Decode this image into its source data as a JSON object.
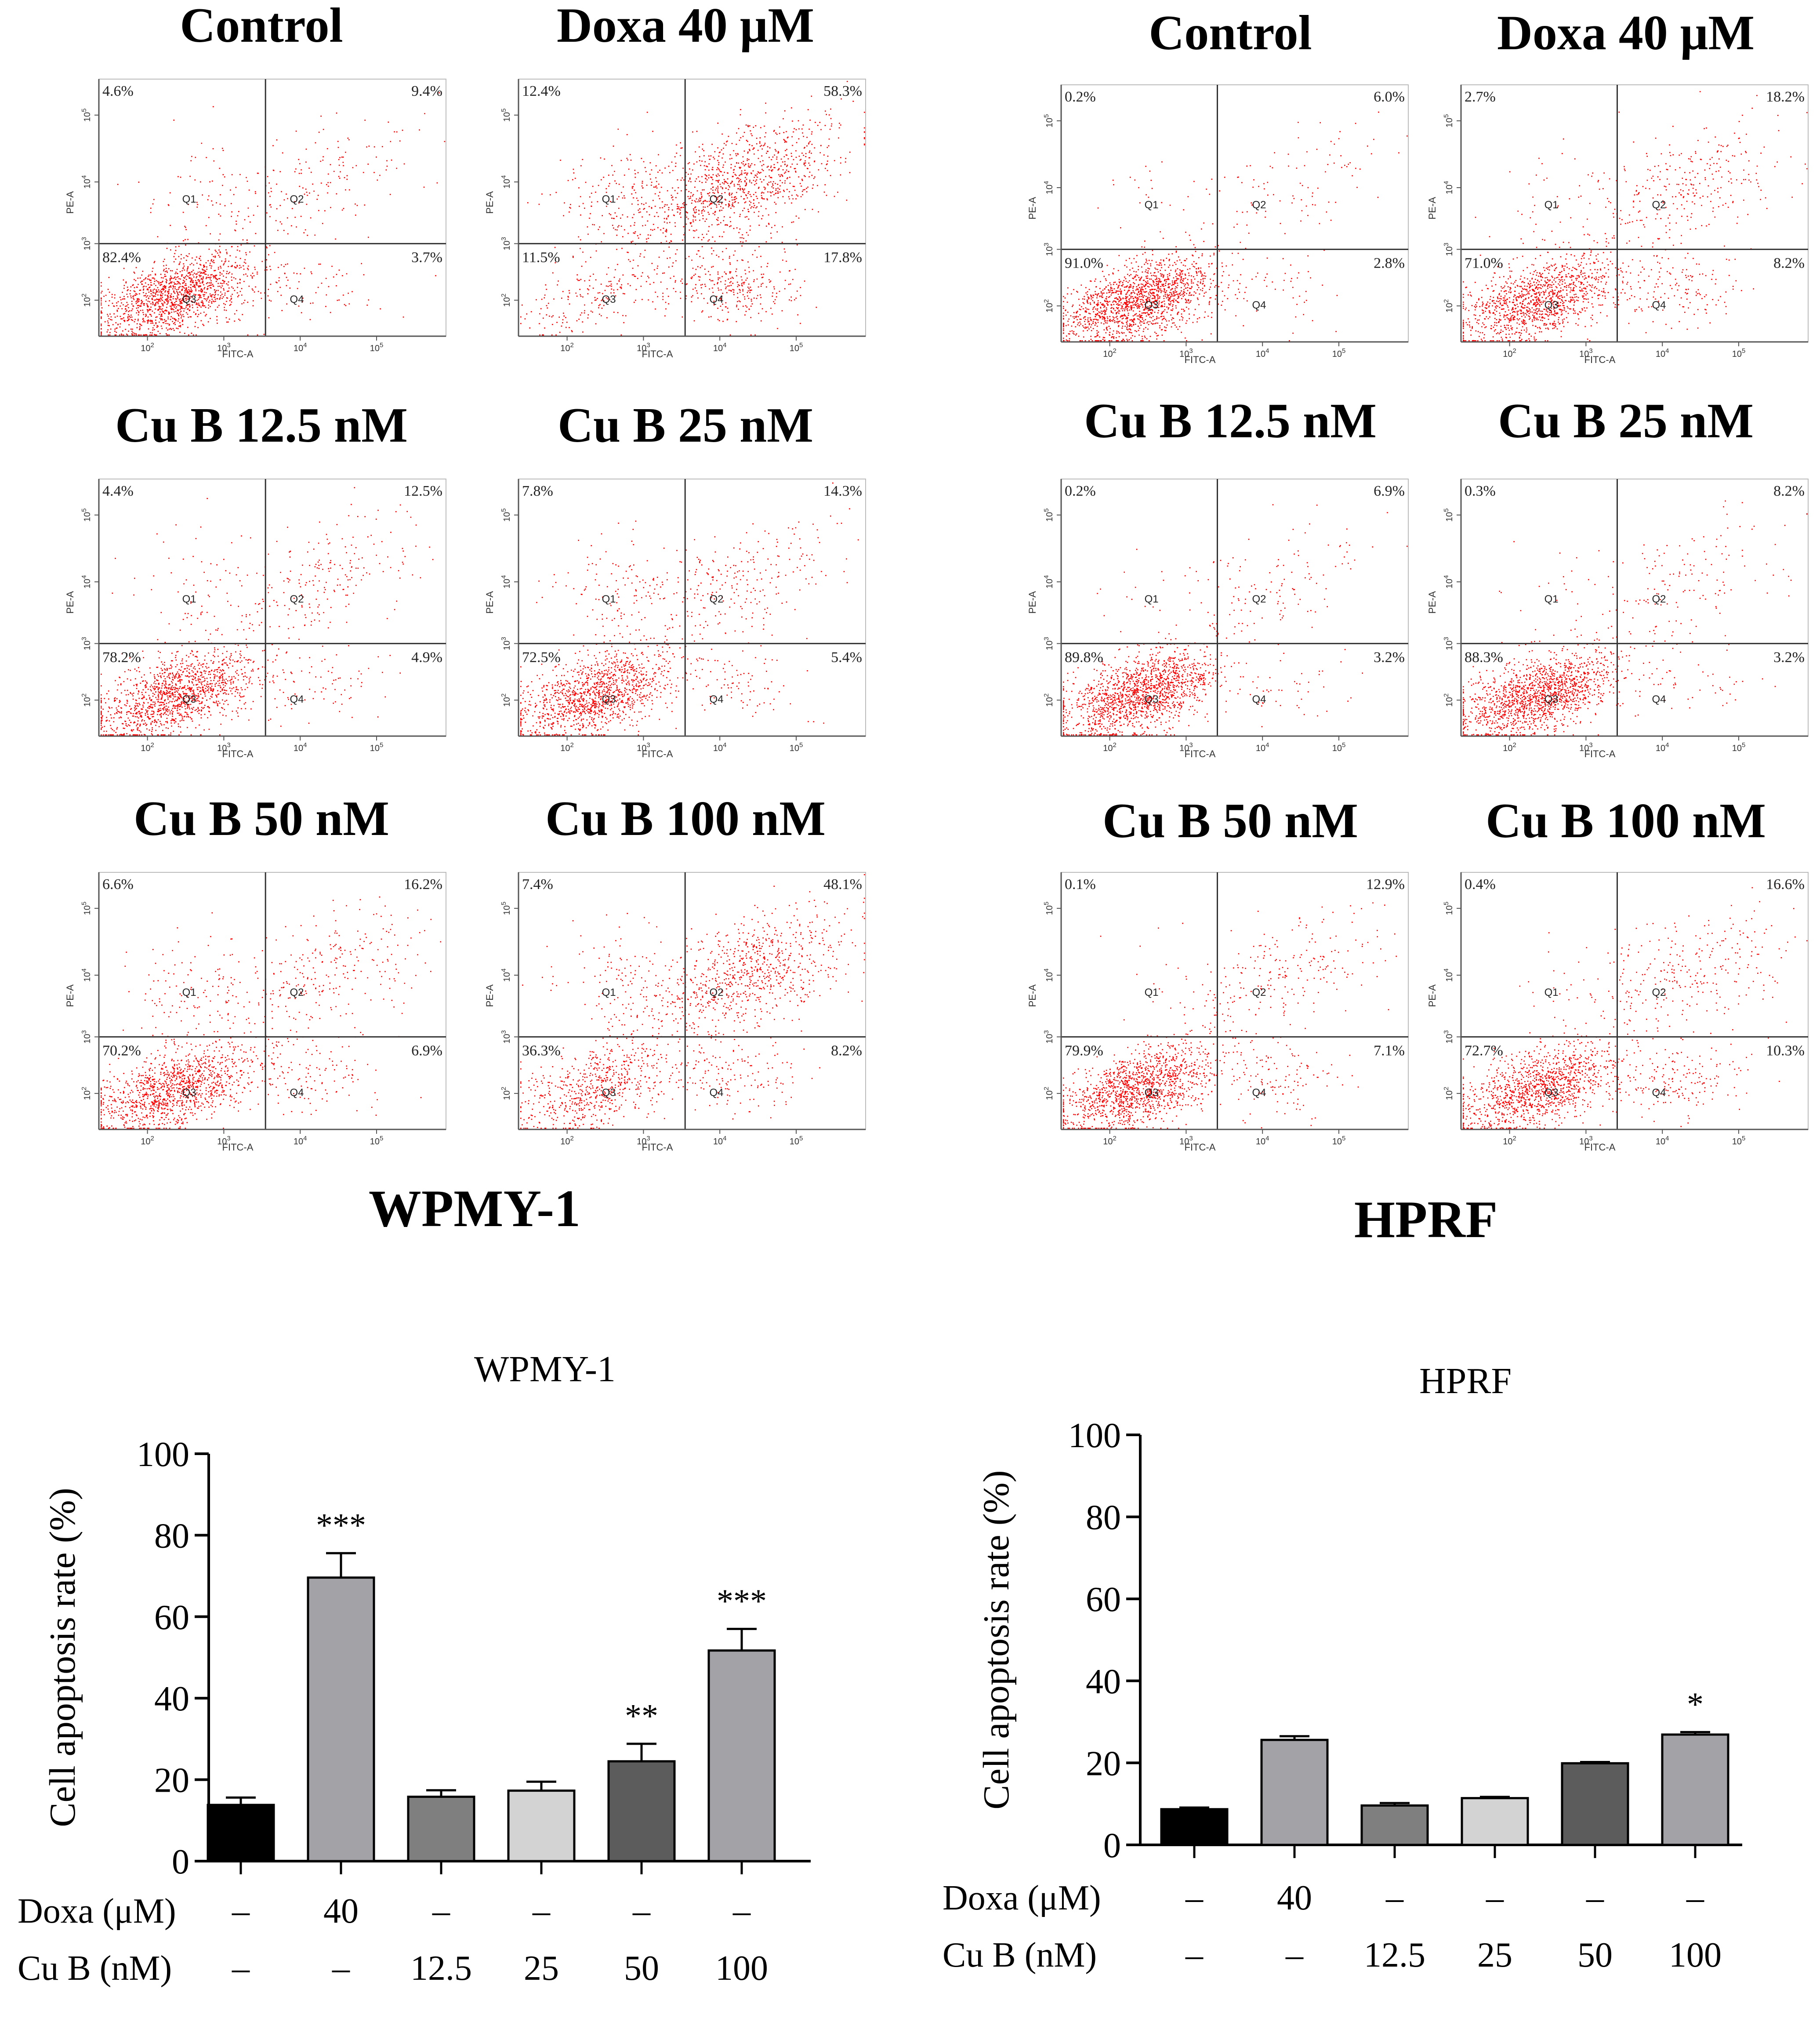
{
  "chart_data": [
    {
      "type": "scatter",
      "panel_group": "WPMY-1",
      "group_label": "WPMY-1",
      "x_axis_label": "FITC-A",
      "y_axis_label": "PE-A",
      "x_tick_labels": [
        "10^2",
        "10^3",
        "10^4",
        "10^5"
      ],
      "y_tick_labels": [
        "10^2",
        "10^3",
        "10^4",
        "10^5"
      ],
      "quadrant_labels": [
        "Q1",
        "Q2",
        "Q3",
        "Q4"
      ],
      "panels": [
        {
          "title": "Control",
          "ul": "4.6%",
          "ur": "9.4%",
          "ll": "82.4%",
          "lr": "3.7%"
        },
        {
          "title": "Doxa 40 μM",
          "ul": "12.4%",
          "ur": "58.3%",
          "ll": "11.5%",
          "lr": "17.8%"
        },
        {
          "title": "Cu B 12.5 nM",
          "ul": "4.4%",
          "ur": "12.5%",
          "ll": "78.2%",
          "lr": "4.9%"
        },
        {
          "title": "Cu B 25 nM",
          "ul": "7.8%",
          "ur": "14.3%",
          "ll": "72.5%",
          "lr": "5.4%"
        },
        {
          "title": "Cu B 50 nM",
          "ul": "6.6%",
          "ur": "16.2%",
          "ll": "70.2%",
          "lr": "6.9%"
        },
        {
          "title": "Cu B 100 nM",
          "ul": "7.4%",
          "ur": "48.1%",
          "ll": "36.3%",
          "lr": "8.2%"
        }
      ]
    },
    {
      "type": "scatter",
      "panel_group": "HPRF",
      "group_label": "HPRF",
      "x_axis_label": "FITC-A",
      "y_axis_label": "PE-A",
      "x_tick_labels": [
        "10^2",
        "10^3",
        "10^4",
        "10^5"
      ],
      "y_tick_labels": [
        "10^2",
        "10^3",
        "10^4",
        "10^5"
      ],
      "quadrant_labels": [
        "Q1",
        "Q2",
        "Q3",
        "Q4"
      ],
      "panels": [
        {
          "title": "Control",
          "ul": "0.2%",
          "ur": "6.0%",
          "ll": "91.0%",
          "lr": "2.8%"
        },
        {
          "title": "Doxa 40 μM",
          "ul": "2.7%",
          "ur": "18.2%",
          "ll": "71.0%",
          "lr": "8.2%"
        },
        {
          "title": "Cu B 12.5 nM",
          "ul": "0.2%",
          "ur": "6.9%",
          "ll": "89.8%",
          "lr": "3.2%"
        },
        {
          "title": "Cu B 25 nM",
          "ul": "0.3%",
          "ur": "8.2%",
          "ll": "88.3%",
          "lr": "3.2%"
        },
        {
          "title": "Cu B 50 nM",
          "ul": "0.1%",
          "ur": "12.9%",
          "ll": "79.9%",
          "lr": "7.1%"
        },
        {
          "title": "Cu B 100 nM",
          "ul": "0.4%",
          "ur": "16.6%",
          "ll": "72.7%",
          "lr": "10.3%"
        }
      ]
    },
    {
      "type": "bar",
      "title": "WPMY-1",
      "ylabel": "Cell apoptosis rate (%)",
      "ylim": [
        0,
        100
      ],
      "yticks": [
        0,
        20,
        40,
        60,
        80,
        100
      ],
      "values": [
        13.8,
        69.6,
        15.8,
        17.3,
        24.5,
        51.7
      ],
      "errors": [
        1.8,
        6.0,
        1.6,
        2.2,
        4.3,
        5.3
      ],
      "significance": [
        "",
        "***",
        "",
        "",
        "**",
        "***"
      ],
      "row_labels": [
        "Doxa  (μM)",
        "Cu B (nM)"
      ],
      "doxa_row": [
        "–",
        "40",
        "–",
        "–",
        "–",
        "–"
      ],
      "cub_row": [
        "–",
        "–",
        "12.5",
        "25",
        "50",
        "100"
      ]
    },
    {
      "type": "bar",
      "title": "HPRF",
      "ylabel": "Cell apoptosis rate (%)",
      "ylim": [
        0,
        100
      ],
      "yticks": [
        0,
        20,
        40,
        60,
        80,
        100
      ],
      "values": [
        8.7,
        25.6,
        9.6,
        11.4,
        19.9,
        26.9
      ],
      "errors": [
        0.4,
        0.9,
        0.6,
        0.3,
        0.3,
        0.6
      ],
      "significance": [
        "",
        "",
        "",
        "",
        "",
        "*"
      ],
      "row_labels": [
        "Doxa  (μM)",
        "Cu B (nM)"
      ],
      "doxa_row": [
        "–",
        "40",
        "–",
        "–",
        "–",
        "–"
      ],
      "cub_row": [
        "–",
        "–",
        "12.5",
        "25",
        "50",
        "100"
      ]
    }
  ],
  "colors": {
    "dots": "#ff0000",
    "gate_lines": "#333333",
    "bar_fills": [
      "#000000",
      "#a3a2a7",
      "#7f7f7f",
      "#d3d3d3",
      "#5c5c5c",
      "#a3a2a7"
    ]
  }
}
